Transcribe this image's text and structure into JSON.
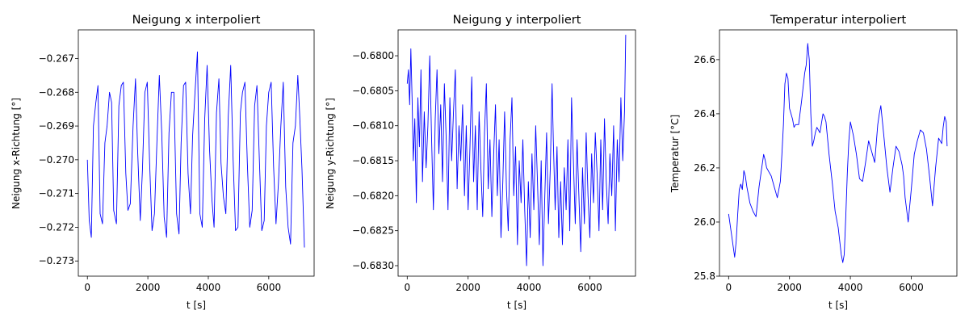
{
  "chart_data": [
    {
      "type": "line",
      "title": "Neigung x interpoliert",
      "xlabel": "t [s]",
      "ylabel": "Neigung x-Richtung [°]",
      "xlim": [
        -300,
        7500
      ],
      "ylim": [
        -0.27345,
        -0.26615
      ],
      "xticks": [
        0,
        2000,
        4000,
        6000
      ],
      "yticks": [
        -0.273,
        -0.272,
        -0.271,
        -0.27,
        -0.269,
        -0.268,
        -0.267
      ],
      "xtick_labels": [
        "0",
        "2000",
        "4000",
        "6000"
      ],
      "ytick_labels": [
        "−0.273",
        "−0.272",
        "−0.271",
        "−0.270",
        "−0.269",
        "−0.268",
        "−0.267"
      ],
      "line_color": "#0000ff",
      "series": [
        {
          "x": [
            0,
            60,
            130,
            200,
            280,
            350,
            420,
            500,
            580,
            650,
            730,
            800,
            870,
            960,
            1040,
            1120,
            1190,
            1270,
            1340,
            1420,
            1510,
            1590,
            1660,
            1750,
            1820,
            1900,
            1980,
            2060,
            2140,
            2220,
            2300,
            2380,
            2460,
            2540,
            2620,
            2700,
            2780,
            2860,
            2950,
            3030,
            3100,
            3180,
            3250,
            3330,
            3410,
            3480,
            3560,
            3640,
            3720,
            3800,
            3880,
            3960,
            4040,
            4120,
            4190,
            4270,
            4350,
            4420,
            4500,
            4580,
            4660,
            4740,
            4820,
            4900,
            4980,
            5060,
            5130,
            5210,
            5290,
            5370,
            5450,
            5530,
            5610,
            5690,
            5770,
            5850,
            5920,
            6000,
            6080,
            6160,
            6240,
            6320,
            6400,
            6480,
            6560,
            6640,
            6720,
            6800,
            6880,
            6960,
            7020,
            7100,
            7180
          ],
          "y": [
            -0.27,
            -0.2718,
            -0.2723,
            -0.269,
            -0.2683,
            -0.2678,
            -0.2716,
            -0.2719,
            -0.2695,
            -0.269,
            -0.268,
            -0.2683,
            -0.2715,
            -0.2719,
            -0.2684,
            -0.2678,
            -0.2677,
            -0.2704,
            -0.2715,
            -0.2713,
            -0.269,
            -0.2676,
            -0.2697,
            -0.2718,
            -0.2703,
            -0.268,
            -0.2677,
            -0.2701,
            -0.2721,
            -0.2716,
            -0.2695,
            -0.2675,
            -0.2692,
            -0.2717,
            -0.2723,
            -0.2692,
            -0.268,
            -0.268,
            -0.2716,
            -0.2722,
            -0.2695,
            -0.2678,
            -0.2677,
            -0.2704,
            -0.2716,
            -0.2693,
            -0.268,
            -0.2668,
            -0.2716,
            -0.272,
            -0.2688,
            -0.2672,
            -0.2697,
            -0.2712,
            -0.272,
            -0.2686,
            -0.2676,
            -0.2701,
            -0.2711,
            -0.2716,
            -0.2687,
            -0.2672,
            -0.27,
            -0.2721,
            -0.272,
            -0.2686,
            -0.268,
            -0.2677,
            -0.2701,
            -0.272,
            -0.2715,
            -0.2684,
            -0.2678,
            -0.27,
            -0.2721,
            -0.2718,
            -0.269,
            -0.268,
            -0.2677,
            -0.2702,
            -0.2719,
            -0.2707,
            -0.269,
            -0.2677,
            -0.2708,
            -0.272,
            -0.2725,
            -0.2695,
            -0.269,
            -0.2675,
            -0.2686,
            -0.2703,
            -0.2726
          ]
        }
      ]
    },
    {
      "type": "line",
      "title": "Neigung y interpoliert",
      "xlabel": "t [s]",
      "ylabel": "Neigung y-Richtung [°]",
      "xlim": [
        -300,
        7500
      ],
      "ylim": [
        -0.68315,
        -0.67963
      ],
      "xticks": [
        0,
        2000,
        4000,
        6000
      ],
      "yticks": [
        -0.683,
        -0.6825,
        -0.682,
        -0.6815,
        -0.681,
        -0.6805,
        -0.68
      ],
      "xtick_labels": [
        "0",
        "2000",
        "4000",
        "6000"
      ],
      "ytick_labels": [
        "−0.6830",
        "−0.6825",
        "−0.6820",
        "−0.6815",
        "−0.6810",
        "−0.6805",
        "−0.6800"
      ],
      "line_color": "#0000ff",
      "series": [
        {
          "x": [
            0,
            40,
            80,
            120,
            160,
            200,
            250,
            300,
            350,
            400,
            450,
            500,
            560,
            620,
            680,
            740,
            800,
            860,
            920,
            980,
            1040,
            1100,
            1160,
            1220,
            1280,
            1340,
            1400,
            1460,
            1520,
            1580,
            1640,
            1700,
            1760,
            1820,
            1880,
            1940,
            2000,
            2060,
            2120,
            2180,
            2240,
            2300,
            2360,
            2420,
            2480,
            2540,
            2600,
            2660,
            2720,
            2780,
            2840,
            2900,
            2960,
            3020,
            3080,
            3140,
            3200,
            3260,
            3320,
            3380,
            3440,
            3500,
            3560,
            3620,
            3680,
            3740,
            3800,
            3860,
            3920,
            3980,
            4040,
            4100,
            4160,
            4220,
            4280,
            4340,
            4400,
            4460,
            4520,
            4580,
            4640,
            4700,
            4760,
            4800,
            4860,
            4920,
            4980,
            5040,
            5100,
            5160,
            5220,
            5280,
            5340,
            5400,
            5460,
            5520,
            5580,
            5640,
            5700,
            5760,
            5820,
            5880,
            5940,
            6000,
            6060,
            6120,
            6180,
            6240,
            6300,
            6360,
            6420,
            6480,
            6540,
            6600,
            6660,
            6720,
            6780,
            6840,
            6900,
            6960,
            7020,
            7080,
            7140,
            7180
          ],
          "y": [
            -0.6804,
            -0.6802,
            -0.6807,
            -0.6799,
            -0.6806,
            -0.6815,
            -0.6809,
            -0.6821,
            -0.6806,
            -0.6813,
            -0.6802,
            -0.6818,
            -0.6808,
            -0.6816,
            -0.681,
            -0.68,
            -0.6812,
            -0.6822,
            -0.6809,
            -0.6802,
            -0.6814,
            -0.6807,
            -0.6818,
            -0.6804,
            -0.6812,
            -0.6822,
            -0.6806,
            -0.6815,
            -0.6808,
            -0.6802,
            -0.6819,
            -0.681,
            -0.6815,
            -0.6807,
            -0.682,
            -0.681,
            -0.6822,
            -0.6813,
            -0.6803,
            -0.6818,
            -0.681,
            -0.6822,
            -0.6808,
            -0.6816,
            -0.6823,
            -0.6811,
            -0.6804,
            -0.6819,
            -0.6812,
            -0.6823,
            -0.6814,
            -0.6807,
            -0.682,
            -0.6812,
            -0.6826,
            -0.6818,
            -0.6808,
            -0.6819,
            -0.6825,
            -0.6812,
            -0.6806,
            -0.682,
            -0.6813,
            -0.6827,
            -0.6815,
            -0.6821,
            -0.6812,
            -0.6822,
            -0.683,
            -0.6818,
            -0.6826,
            -0.6814,
            -0.6822,
            -0.681,
            -0.6818,
            -0.6827,
            -0.6815,
            -0.683,
            -0.682,
            -0.6811,
            -0.6824,
            -0.6816,
            -0.6804,
            -0.6812,
            -0.6822,
            -0.6813,
            -0.6826,
            -0.6818,
            -0.6827,
            -0.6816,
            -0.6822,
            -0.6812,
            -0.6825,
            -0.6806,
            -0.6815,
            -0.6824,
            -0.6812,
            -0.682,
            -0.6828,
            -0.6816,
            -0.6824,
            -0.6811,
            -0.682,
            -0.6826,
            -0.6814,
            -0.6821,
            -0.6811,
            -0.6817,
            -0.6825,
            -0.6812,
            -0.6822,
            -0.6809,
            -0.6818,
            -0.6824,
            -0.6814,
            -0.682,
            -0.681,
            -0.6825,
            -0.6812,
            -0.6818,
            -0.6806,
            -0.6815,
            -0.6808,
            -0.6797
          ]
        }
      ]
    },
    {
      "type": "line",
      "title": "Temperatur interpoliert",
      "xlabel": "t [s]",
      "ylabel": "Temperatur [°C]",
      "xlim": [
        -300,
        7500
      ],
      "ylim": [
        25.8,
        26.71
      ],
      "xticks": [
        0,
        2000,
        4000,
        6000
      ],
      "yticks": [
        25.8,
        26.0,
        26.2,
        26.4,
        26.6
      ],
      "xtick_labels": [
        "0",
        "2000",
        "4000",
        "6000"
      ],
      "ytick_labels": [
        "25.8",
        "26.0",
        "26.2",
        "26.4",
        "26.6"
      ],
      "line_color": "#0000ff",
      "series": [
        {
          "x": [
            0,
            100,
            200,
            250,
            300,
            350,
            400,
            450,
            500,
            550,
            600,
            700,
            800,
            900,
            1000,
            1100,
            1150,
            1200,
            1250,
            1300,
            1400,
            1500,
            1600,
            1700,
            1750,
            1800,
            1850,
            1900,
            1950,
            2000,
            2100,
            2150,
            2200,
            2300,
            2400,
            2500,
            2550,
            2600,
            2650,
            2700,
            2750,
            2800,
            2850,
            2900,
            3000,
            3100,
            3150,
            3200,
            3250,
            3300,
            3400,
            3500,
            3600,
            3700,
            3750,
            3800,
            3850,
            3900,
            3950,
            4000,
            4100,
            4200,
            4300,
            4400,
            4500,
            4600,
            4700,
            4800,
            4850,
            4900,
            4950,
            5000,
            5100,
            5200,
            5300,
            5400,
            5500,
            5600,
            5700,
            5750,
            5800,
            5900,
            6000,
            6100,
            6200,
            6300,
            6400,
            6500,
            6600,
            6700,
            6800,
            6900,
            7000,
            7050,
            7100,
            7150,
            7180
          ],
          "y": [
            26.03,
            25.95,
            25.87,
            25.93,
            26.03,
            26.12,
            26.14,
            26.12,
            26.19,
            26.17,
            26.13,
            26.07,
            26.04,
            26.02,
            26.13,
            26.21,
            26.25,
            26.23,
            26.2,
            26.19,
            26.17,
            26.13,
            26.09,
            26.15,
            26.25,
            26.36,
            26.51,
            26.55,
            26.53,
            26.42,
            26.38,
            26.35,
            26.36,
            26.36,
            26.45,
            26.55,
            26.58,
            26.66,
            26.6,
            26.4,
            26.28,
            26.3,
            26.33,
            26.35,
            26.33,
            26.4,
            26.39,
            26.37,
            26.31,
            26.25,
            26.15,
            26.04,
            25.98,
            25.88,
            25.85,
            25.88,
            26.02,
            26.18,
            26.3,
            26.37,
            26.32,
            26.25,
            26.16,
            26.15,
            26.22,
            26.3,
            26.26,
            26.22,
            26.29,
            26.36,
            26.4,
            26.43,
            26.32,
            26.2,
            26.11,
            26.2,
            26.28,
            26.26,
            26.21,
            26.17,
            26.09,
            26.0,
            26.12,
            26.25,
            26.3,
            26.34,
            26.33,
            26.27,
            26.17,
            26.06,
            26.2,
            26.31,
            26.29,
            26.35,
            26.39,
            26.37,
            26.28
          ]
        }
      ]
    }
  ]
}
